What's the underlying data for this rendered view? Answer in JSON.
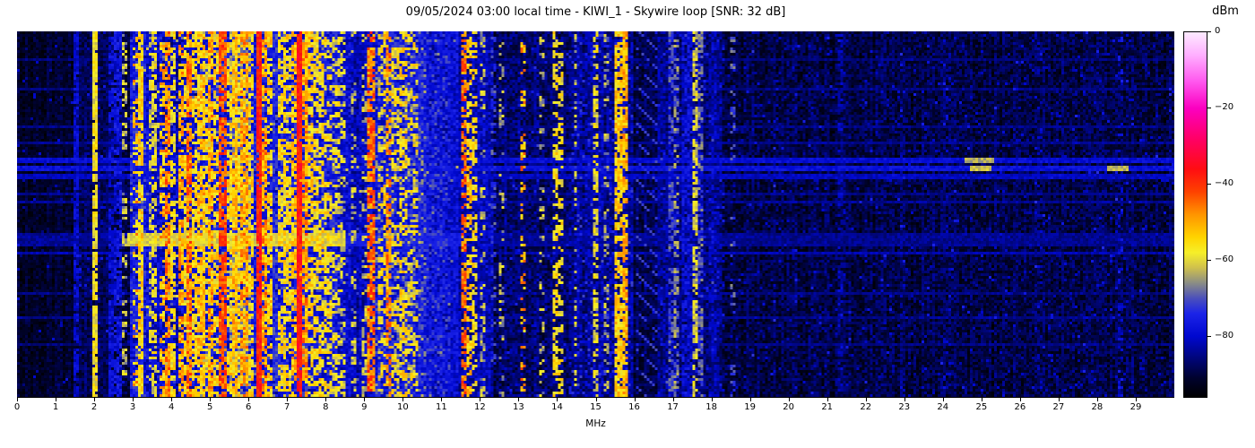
{
  "figure": {
    "title": "09/05/2024 03:00 local time - KIWI_1 - Skywire loop [SNR: 32 dB]",
    "x_axis": {
      "label": "MHz",
      "tick_values": [
        0,
        1,
        2,
        3,
        4,
        5,
        6,
        7,
        8,
        9,
        10,
        11,
        12,
        13,
        14,
        15,
        16,
        17,
        18,
        19,
        20,
        21,
        22,
        23,
        24,
        25,
        26,
        27,
        28,
        29
      ]
    },
    "colorbar": {
      "label": "dBm",
      "tick_values": [
        0,
        -20,
        -40,
        -60,
        -80
      ],
      "tick_labels": [
        "0",
        "−20",
        "−40",
        "−60",
        "−80"
      ],
      "vmax": 0,
      "vmin": -96
    }
  },
  "chart_data": {
    "type": "heatmap",
    "subtype": "radio-spectrogram-waterfall",
    "title": "09/05/2024 03:00 local time - KIWI_1 - Skywire loop [SNR: 32 dB]",
    "snr_db": 32,
    "receiver": "KIWI_1",
    "antenna": "Skywire loop",
    "timestamp_label": "09/05/2024 03:00 local time",
    "xlabel": "MHz",
    "x_range_mhz": [
      0,
      30
    ],
    "y_axis": "time (unlabeled, newest rows span full height)",
    "value_unit": "dBm",
    "value_range": [
      -96,
      0
    ],
    "colormap": [
      [
        0,
        "#fdeaff"
      ],
      [
        -6,
        "#ffafff"
      ],
      [
        -13,
        "#ff57ee"
      ],
      [
        -20,
        "#fb00c0"
      ],
      [
        -28,
        "#ff0066"
      ],
      [
        -36,
        "#ff0d12"
      ],
      [
        -42,
        "#fe4200"
      ],
      [
        -48,
        "#ff9500"
      ],
      [
        -54,
        "#ffd400"
      ],
      [
        -58,
        "#f6ef29"
      ],
      [
        -62,
        "#cfc04d"
      ],
      [
        -66,
        "#8b8d85"
      ],
      [
        -70,
        "#4b50bb"
      ],
      [
        -74,
        "#1c24e8"
      ],
      [
        -80,
        "#0008d0"
      ],
      [
        -86,
        "#000577"
      ],
      [
        -91,
        "#00022e"
      ],
      [
        -96,
        "#000000"
      ]
    ],
    "noise_floor_format": "[f_start_mhz, f_end_mhz, level_dbm, noise_amp_db]",
    "noise_floor_segments": [
      [
        0.0,
        1.5,
        -92,
        3
      ],
      [
        1.5,
        2.95,
        -89,
        4
      ],
      [
        2.95,
        4.7,
        -80,
        6
      ],
      [
        4.7,
        8.35,
        -77,
        6
      ],
      [
        8.35,
        9.25,
        -81,
        5
      ],
      [
        9.25,
        10.6,
        -77,
        5
      ],
      [
        10.6,
        11.45,
        -79,
        5
      ],
      [
        11.45,
        12.35,
        -82,
        5
      ],
      [
        12.35,
        14.35,
        -87,
        5
      ],
      [
        14.35,
        15.95,
        -84,
        5
      ],
      [
        15.95,
        16.6,
        -89,
        4
      ],
      [
        16.6,
        18.3,
        -85,
        5
      ],
      [
        18.3,
        30.0,
        -89.5,
        4.5
      ]
    ],
    "signal_band_format": "[f_start_mhz, f_end_mhz, level_dbm, density_0to1, time_gate_0to1, variation_db]",
    "signal_bands": [
      [
        1.5,
        1.57,
        -80,
        0.85,
        0.9,
        4
      ],
      [
        1.99,
        2.05,
        -58,
        0.9,
        0.95,
        5
      ],
      [
        2.42,
        2.47,
        -79,
        0.8,
        0.8,
        4
      ],
      [
        2.55,
        2.72,
        -78,
        0.85,
        0.9,
        5
      ],
      [
        2.76,
        2.81,
        -62,
        0.6,
        0.7,
        6
      ],
      [
        2.95,
        3.32,
        -76,
        0.7,
        0.95,
        6
      ],
      [
        3.02,
        3.07,
        -52,
        0.5,
        0.6,
        8
      ],
      [
        3.19,
        3.27,
        -55,
        0.9,
        0.95,
        6
      ],
      [
        3.42,
        3.48,
        -61,
        0.6,
        0.7,
        6
      ],
      [
        3.55,
        3.61,
        -59,
        0.7,
        0.8,
        6
      ],
      [
        3.72,
        3.79,
        -52,
        0.7,
        0.8,
        7
      ],
      [
        3.88,
        3.97,
        -47,
        0.8,
        0.85,
        7
      ],
      [
        4.02,
        4.09,
        -57,
        0.7,
        0.8,
        6
      ],
      [
        4.2,
        4.31,
        -50,
        0.8,
        0.85,
        7
      ],
      [
        4.33,
        4.41,
        -56,
        0.7,
        0.8,
        6
      ],
      [
        4.44,
        4.53,
        -46,
        0.8,
        0.9,
        7
      ],
      [
        4.57,
        4.65,
        -55,
        0.7,
        0.8,
        6
      ],
      [
        4.72,
        4.83,
        -53,
        0.8,
        0.85,
        7
      ],
      [
        4.88,
        4.97,
        -57,
        0.7,
        0.8,
        6
      ],
      [
        5.0,
        5.09,
        -50,
        0.8,
        0.85,
        7
      ],
      [
        5.12,
        5.21,
        -56,
        0.7,
        0.8,
        6
      ],
      [
        5.3,
        5.41,
        -43,
        0.85,
        0.9,
        6
      ],
      [
        5.45,
        5.53,
        -55,
        0.7,
        0.8,
        6
      ],
      [
        5.55,
        6.02,
        -64,
        0.7,
        1.0,
        8
      ],
      [
        5.6,
        5.67,
        -52,
        0.8,
        0.9,
        6
      ],
      [
        5.72,
        5.79,
        -55,
        0.7,
        0.85,
        6
      ],
      [
        5.86,
        5.95,
        -50,
        0.8,
        0.9,
        7
      ],
      [
        6.03,
        6.1,
        -55,
        0.7,
        0.8,
        6
      ],
      [
        6.24,
        6.32,
        -38,
        0.95,
        1.0,
        5
      ],
      [
        6.37,
        6.47,
        -49,
        0.8,
        0.85,
        7
      ],
      [
        6.52,
        6.61,
        -54,
        0.75,
        0.8,
        6
      ],
      [
        6.66,
        6.75,
        -73,
        0.8,
        0.9,
        5
      ],
      [
        6.8,
        6.91,
        -56,
        0.7,
        0.8,
        6
      ],
      [
        6.95,
        7.06,
        -56,
        0.7,
        0.8,
        6
      ],
      [
        7.18,
        7.25,
        -52,
        0.7,
        0.8,
        6
      ],
      [
        7.27,
        7.35,
        -37,
        0.95,
        1.0,
        5
      ],
      [
        7.38,
        7.49,
        -48,
        0.8,
        0.85,
        7
      ],
      [
        7.52,
        7.61,
        -54,
        0.75,
        0.8,
        6
      ],
      [
        7.68,
        7.77,
        -56,
        0.7,
        0.8,
        6
      ],
      [
        7.84,
        7.93,
        -55,
        0.7,
        0.8,
        6
      ],
      [
        8.02,
        8.13,
        -56,
        0.7,
        0.75,
        6
      ],
      [
        8.2,
        8.31,
        -59,
        0.6,
        0.7,
        6
      ],
      [
        8.42,
        8.47,
        -61,
        0.5,
        0.6,
        6
      ],
      [
        8.7,
        8.75,
        -62,
        0.5,
        0.6,
        6
      ],
      [
        8.95,
        9.01,
        -61,
        0.5,
        0.6,
        6
      ],
      [
        9.12,
        9.21,
        -45,
        0.8,
        0.9,
        8
      ],
      [
        9.3,
        10.55,
        -69,
        0.3,
        1.0,
        7
      ],
      [
        9.38,
        9.45,
        -57,
        0.6,
        0.7,
        6
      ],
      [
        9.52,
        9.59,
        -55,
        0.6,
        0.7,
        6
      ],
      [
        9.62,
        9.68,
        -47,
        0.7,
        0.8,
        6
      ],
      [
        9.76,
        9.85,
        -57,
        0.6,
        0.7,
        6
      ],
      [
        9.96,
        10.05,
        -55,
        0.6,
        0.7,
        6
      ],
      [
        10.12,
        10.19,
        -59,
        0.5,
        0.6,
        6
      ],
      [
        10.3,
        10.39,
        -57,
        0.5,
        0.6,
        6
      ],
      [
        10.62,
        11.2,
        -75,
        0.5,
        1.0,
        6
      ],
      [
        11.56,
        11.63,
        -45,
        0.75,
        0.85,
        7
      ],
      [
        11.66,
        11.75,
        -53,
        0.7,
        0.8,
        6
      ],
      [
        11.82,
        11.91,
        -56,
        0.6,
        0.7,
        6
      ],
      [
        12.06,
        12.13,
        -63,
        0.5,
        0.6,
        6
      ],
      [
        12.3,
        12.37,
        -72,
        0.5,
        0.6,
        5
      ],
      [
        12.55,
        12.61,
        -64,
        0.4,
        0.5,
        6
      ],
      [
        13.05,
        13.13,
        -50,
        0.5,
        0.55,
        8
      ],
      [
        13.55,
        13.61,
        -63,
        0.4,
        0.5,
        6
      ],
      [
        13.94,
        14.01,
        -56,
        0.7,
        0.8,
        6
      ],
      [
        14.06,
        14.13,
        -57,
        0.6,
        0.7,
        6
      ],
      [
        14.45,
        14.51,
        -62,
        0.5,
        0.6,
        6
      ],
      [
        14.95,
        15.03,
        -59,
        0.6,
        0.7,
        6
      ],
      [
        15.25,
        15.31,
        -65,
        0.5,
        0.6,
        6
      ],
      [
        15.55,
        15.63,
        -54,
        0.8,
        0.9,
        6
      ],
      [
        15.7,
        15.78,
        -51,
        0.85,
        0.9,
        6
      ],
      [
        16.95,
        17.01,
        -71,
        0.6,
        0.8,
        5
      ],
      [
        17.08,
        17.14,
        -67,
        0.6,
        0.8,
        6
      ],
      [
        17.28,
        17.5,
        -79,
        0.7,
        1.0,
        5
      ],
      [
        17.54,
        17.61,
        -61,
        0.7,
        0.85,
        6
      ],
      [
        17.72,
        17.78,
        -69,
        0.6,
        0.8,
        5
      ],
      [
        18.52,
        18.58,
        -70,
        0.5,
        0.35,
        4
      ],
      [
        21.3,
        21.37,
        -82,
        0.5,
        0.7,
        4
      ],
      [
        24.1,
        24.16,
        -83,
        0.4,
        0.6,
        4
      ],
      [
        26.5,
        26.56,
        -83,
        0.4,
        0.6,
        4
      ],
      [
        28.55,
        28.62,
        -79,
        0.4,
        0.6,
        5
      ],
      [
        2.95,
        8.35,
        -64,
        0.05,
        1.0,
        8
      ],
      [
        8.35,
        9.25,
        -66,
        0.03,
        1.0,
        6
      ],
      [
        14.35,
        15.95,
        -77,
        0.12,
        1.0,
        6
      ],
      [
        16.6,
        18.3,
        -79,
        0.08,
        1.0,
        5
      ],
      [
        18.3,
        30.0,
        -84,
        0.04,
        1.0,
        4
      ]
    ],
    "diagonal_band": {
      "f0": 16.08,
      "f1": 16.55,
      "level": -72
    },
    "time_event_format": "[y_frac_start, y_frac_end, f_start_mhz, f_end_mhz, level_dbm]",
    "time_events": [
      [
        0.076,
        0.084,
        0,
        30,
        -86
      ],
      [
        0.154,
        0.162,
        0,
        30,
        -85.5
      ],
      [
        0.255,
        0.263,
        0,
        30,
        -85
      ],
      [
        0.302,
        0.31,
        0,
        30,
        -84.5
      ],
      [
        0.348,
        0.363,
        0,
        30,
        -79
      ],
      [
        0.348,
        0.363,
        24.6,
        25.3,
        -64
      ],
      [
        0.371,
        0.385,
        0,
        30,
        -78
      ],
      [
        0.371,
        0.385,
        24.7,
        25.2,
        -62
      ],
      [
        0.371,
        0.385,
        28.3,
        28.8,
        -63
      ],
      [
        0.392,
        0.402,
        0,
        30,
        -81
      ],
      [
        0.44,
        0.448,
        0,
        30,
        -85
      ],
      [
        0.464,
        0.472,
        0,
        30,
        -84
      ],
      [
        0.553,
        0.586,
        2.9,
        8.45,
        -61
      ],
      [
        0.553,
        0.586,
        8.45,
        11.5,
        -76
      ],
      [
        0.553,
        0.586,
        0,
        2.9,
        -84
      ],
      [
        0.553,
        0.586,
        11.5,
        30,
        -84.5
      ],
      [
        0.604,
        0.612,
        0,
        30,
        -82.5
      ],
      [
        0.714,
        0.722,
        0,
        30,
        -85
      ],
      [
        0.776,
        0.784,
        0,
        30,
        -85
      ],
      [
        0.851,
        0.859,
        0,
        30,
        -85.5
      ]
    ]
  }
}
